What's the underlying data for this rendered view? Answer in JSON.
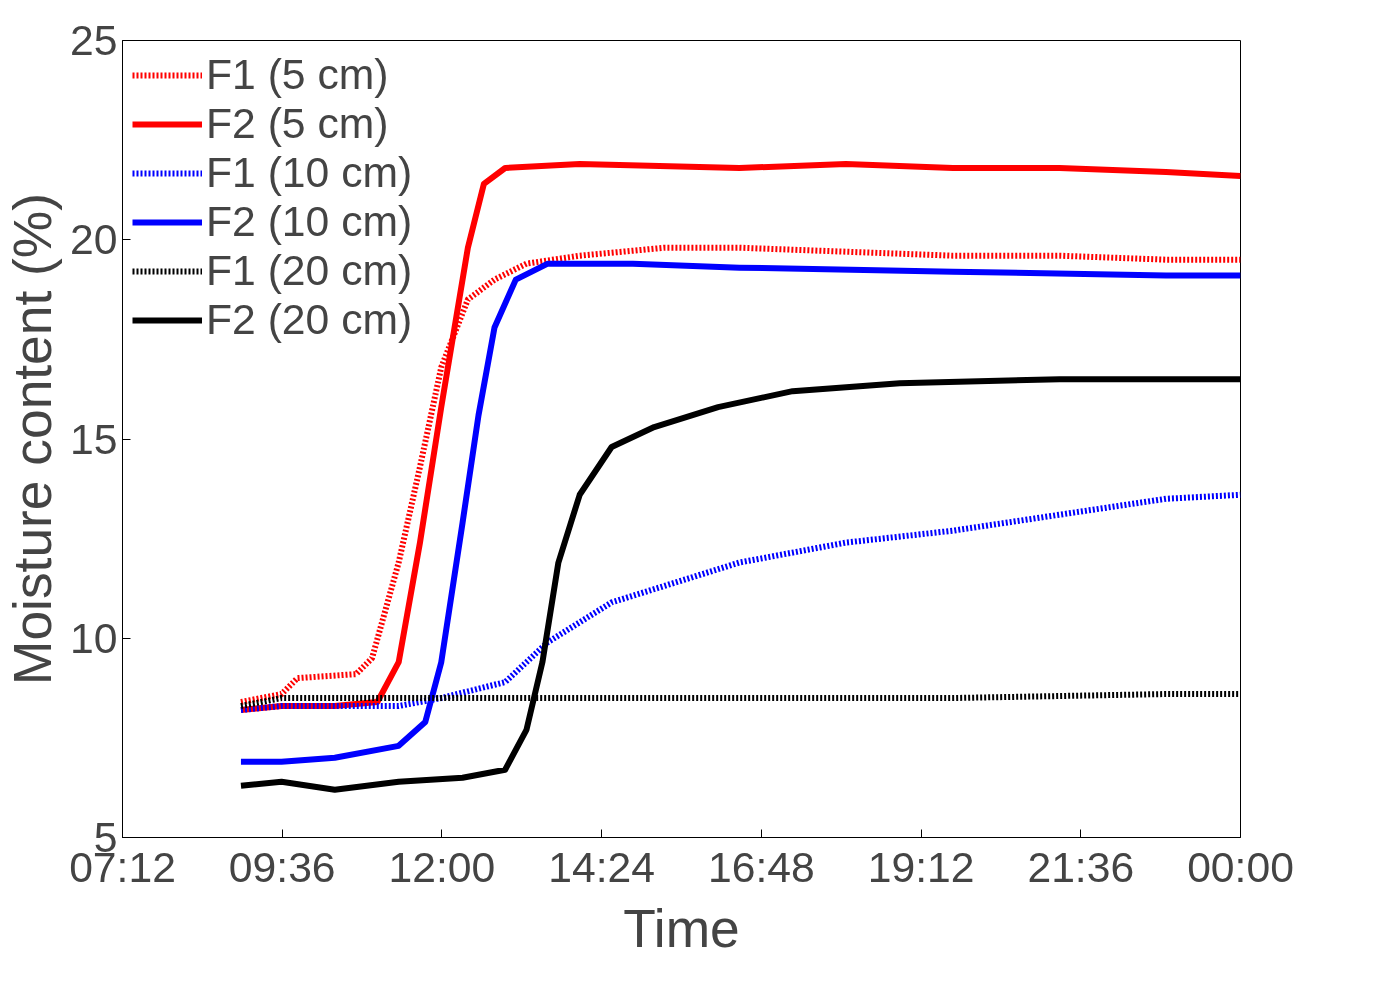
{
  "chart_data": {
    "type": "line",
    "xlabel": "Time",
    "ylabel": "Moisture content (%)",
    "xlim": [
      7.2,
      24
    ],
    "xticks": [
      {
        "value": 7.2,
        "label": "07:12"
      },
      {
        "value": 9.6,
        "label": "09:36"
      },
      {
        "value": 12,
        "label": "12:00"
      },
      {
        "value": 14.4,
        "label": "14:24"
      },
      {
        "value": 16.8,
        "label": "16:48"
      },
      {
        "value": 19.2,
        "label": "19:12"
      },
      {
        "value": 21.6,
        "label": "21:36"
      },
      {
        "value": 24,
        "label": "00:00"
      }
    ],
    "ylim": [
      5,
      25
    ],
    "yticks": [
      5,
      10,
      15,
      20,
      25
    ],
    "grid": false,
    "legend": "top left",
    "marker": "none",
    "series": [
      {
        "name": "F1 (5 cm)",
        "color": "#ff0000",
        "line_style": "dotted",
        "x": [
          8.98,
          9.59,
          9.83,
          10.71,
          10.95,
          11.35,
          11.67,
          11.99,
          12.39,
          12.79,
          13.27,
          14.07,
          15.35,
          16.47,
          18.07,
          19.68,
          21.28,
          22.88,
          24.0
        ],
        "values": [
          8.4,
          8.6,
          9.0,
          9.1,
          9.5,
          11.9,
          14.3,
          16.8,
          18.5,
          19.0,
          19.4,
          19.6,
          19.8,
          19.8,
          19.7,
          19.6,
          19.6,
          19.5,
          19.5
        ]
      },
      {
        "name": "F2 (5 cm)",
        "color": "#ff0000",
        "line_style": "solid",
        "x": [
          8.98,
          9.59,
          10.39,
          11.03,
          11.35,
          11.67,
          11.99,
          12.39,
          12.63,
          12.95,
          14.07,
          16.47,
          18.07,
          19.68,
          21.28,
          22.88,
          24.0
        ],
        "values": [
          8.2,
          8.3,
          8.3,
          8.4,
          9.4,
          12.4,
          15.8,
          19.8,
          21.4,
          21.8,
          21.9,
          21.8,
          21.9,
          21.8,
          21.8,
          21.7,
          21.6
        ]
      },
      {
        "name": "F1 (10 cm)",
        "color": "#0000ff",
        "line_style": "dotted",
        "x": [
          8.98,
          9.59,
          10.39,
          11.35,
          11.99,
          12.95,
          13.59,
          14.55,
          15.51,
          16.47,
          18.07,
          19.68,
          21.28,
          22.88,
          24.0
        ],
        "values": [
          8.2,
          8.3,
          8.3,
          8.3,
          8.5,
          8.9,
          9.9,
          10.9,
          11.4,
          11.9,
          12.4,
          12.7,
          13.1,
          13.5,
          13.6
        ]
      },
      {
        "name": "F2 (10 cm)",
        "color": "#0000ff",
        "line_style": "solid",
        "x": [
          8.98,
          9.59,
          10.39,
          11.35,
          11.75,
          11.99,
          12.31,
          12.55,
          12.79,
          13.11,
          13.59,
          14.87,
          16.47,
          19.68,
          22.88,
          24.0
        ],
        "values": [
          6.9,
          6.9,
          7.0,
          7.3,
          7.9,
          9.4,
          12.9,
          15.6,
          17.8,
          19.0,
          19.4,
          19.4,
          19.3,
          19.2,
          19.1,
          19.1
        ]
      },
      {
        "name": "F1 (20 cm)",
        "color": "#000000",
        "line_style": "dotted",
        "x": [
          8.98,
          9.59,
          12.0,
          16.47,
          19.68,
          22.88,
          24.0
        ],
        "values": [
          8.3,
          8.5,
          8.5,
          8.5,
          8.5,
          8.6,
          8.6
        ]
      },
      {
        "name": "F2 (20 cm)",
        "color": "#000000",
        "line_style": "solid",
        "x": [
          8.98,
          9.59,
          10.39,
          11.35,
          12.31,
          12.95,
          13.27,
          13.51,
          13.75,
          14.07,
          14.55,
          15.19,
          16.15,
          17.27,
          18.88,
          21.28,
          24.0
        ],
        "values": [
          6.3,
          6.4,
          6.2,
          6.4,
          6.5,
          6.7,
          7.7,
          9.4,
          11.9,
          13.6,
          14.8,
          15.3,
          15.8,
          16.2,
          16.4,
          16.5,
          16.5
        ]
      }
    ]
  }
}
